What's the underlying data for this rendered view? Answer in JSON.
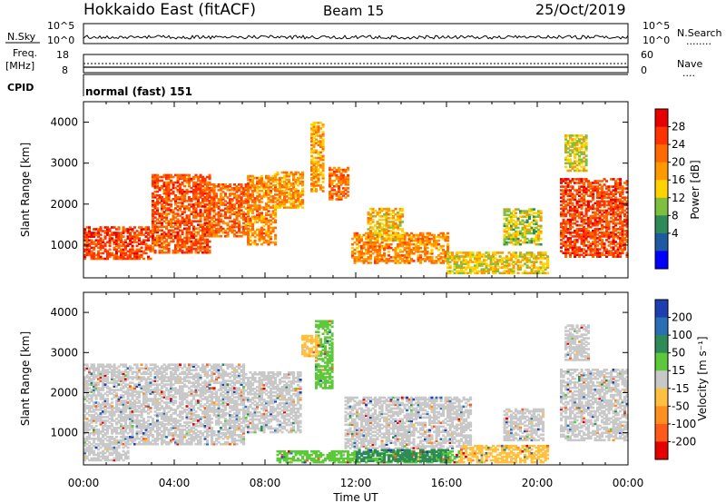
{
  "header": {
    "station": "Hokkaido East (fitACF)",
    "beam": "Beam 15",
    "date": "25/Oct/2019"
  },
  "strip": {
    "nsky_label": "N.Sky",
    "nsearch_label": "N.Search",
    "nsearch_line": "........",
    "count_ticks_left": [
      "10^5",
      "10^0"
    ],
    "count_ticks_right": [
      "10^5",
      "10^0"
    ],
    "freq_label_1": "Freq.",
    "freq_label_2": "[MHz]",
    "freq_ticks": [
      "18",
      "8"
    ],
    "nave_label": "Nave",
    "nave_line": "....",
    "nave_ticks": [
      "60",
      "0"
    ],
    "cpid_label": "CPID",
    "cpid_text": "normal (fast) 151"
  },
  "colorbars": {
    "power": {
      "label": "Power [dB]",
      "ticks": [
        "28",
        "24",
        "20",
        "16",
        "12",
        "8",
        "4"
      ],
      "colors": [
        "#e60000",
        "#ff3300",
        "#ff6a00",
        "#ff9900",
        "#ffd200",
        "#7fbf3f",
        "#2e8b57",
        "#1e5aa0",
        "#0000ff"
      ]
    },
    "velocity": {
      "label": "Velocity [m s⁻¹]",
      "ticks": [
        "200",
        "100",
        "50",
        "15",
        "-15",
        "-50",
        "-100",
        "-200"
      ],
      "colors": [
        "#1e3fb0",
        "#2a6fb5",
        "#2e8b57",
        "#5cc83a",
        "#c8c8c8",
        "#ffc040",
        "#ff9020",
        "#ff5a1a",
        "#e60000"
      ]
    }
  },
  "chart_data": [
    {
      "type": "heatmap",
      "quantity": "Power [dB]",
      "x": [
        "00:00",
        "04:00",
        "08:00",
        "12:00",
        "16:00",
        "20:00",
        "00:00"
      ],
      "xlabel": "",
      "ylabel": "Slant Range [km]",
      "yticks": [
        1000,
        2000,
        3000,
        4000
      ],
      "ylim": [
        200,
        4500
      ],
      "zticks": [
        4,
        8,
        12,
        16,
        20,
        24,
        28
      ],
      "zlim": [
        0,
        32
      ],
      "regions": [
        {
          "t0": 0.0,
          "t1": 3.0,
          "r0": 650,
          "r1": 1450,
          "db": 27
        },
        {
          "t0": 3.0,
          "t1": 5.5,
          "r0": 800,
          "r1": 2700,
          "db": 26
        },
        {
          "t0": 5.5,
          "t1": 7.2,
          "r0": 1200,
          "r1": 2500,
          "db": 25
        },
        {
          "t0": 7.2,
          "t1": 8.4,
          "r0": 1000,
          "r1": 2700,
          "db": 22
        },
        {
          "t0": 8.4,
          "t1": 9.6,
          "r0": 1900,
          "r1": 2800,
          "db": 21
        },
        {
          "t0": 10.0,
          "t1": 10.5,
          "r0": 2300,
          "r1": 4000,
          "db": 20
        },
        {
          "t0": 10.8,
          "t1": 11.6,
          "r0": 2100,
          "r1": 2900,
          "db": 24
        },
        {
          "t0": 11.8,
          "t1": 16.0,
          "r0": 550,
          "r1": 1300,
          "db": 22
        },
        {
          "t0": 12.5,
          "t1": 14.0,
          "r0": 1100,
          "r1": 1900,
          "db": 18
        },
        {
          "t0": 16.0,
          "t1": 20.5,
          "r0": 300,
          "r1": 800,
          "db": 16
        },
        {
          "t0": 18.5,
          "t1": 20.2,
          "r0": 1000,
          "r1": 1900,
          "db": 14
        },
        {
          "t0": 21.0,
          "t1": 24.0,
          "r0": 700,
          "r1": 2600,
          "db": 27
        },
        {
          "t0": 21.2,
          "t1": 22.2,
          "r0": 2800,
          "r1": 3700,
          "db": 15
        }
      ]
    },
    {
      "type": "heatmap",
      "quantity": "Velocity [m s-1]",
      "x": [
        "00:00",
        "04:00",
        "08:00",
        "12:00",
        "16:00",
        "20:00",
        "00:00"
      ],
      "xlabel": "Time UT",
      "ylabel": "Slant Range [km]",
      "yticks": [
        1000,
        2000,
        3000,
        4000
      ],
      "ylim": [
        200,
        4500
      ],
      "zticks": [
        -200,
        -100,
        -50,
        -15,
        15,
        50,
        100,
        200
      ],
      "regions": [
        {
          "t0": 0.0,
          "t1": 7.0,
          "r0": 700,
          "r1": 2700,
          "v": 0
        },
        {
          "t0": 0.0,
          "t1": 2.0,
          "r0": 300,
          "r1": 700,
          "v": 0
        },
        {
          "t0": 7.0,
          "t1": 9.5,
          "r0": 1000,
          "r1": 2500,
          "v": 0
        },
        {
          "t0": 10.2,
          "t1": 10.9,
          "r0": 2100,
          "r1": 3800,
          "v": 30
        },
        {
          "t0": 9.6,
          "t1": 10.3,
          "r0": 2900,
          "r1": 3400,
          "v": -30
        },
        {
          "t0": 11.5,
          "t1": 17.0,
          "r0": 600,
          "r1": 1900,
          "v": 0
        },
        {
          "t0": 8.5,
          "t1": 16.5,
          "r0": 250,
          "r1": 550,
          "v": 30
        },
        {
          "t0": 12.0,
          "t1": 16.0,
          "r0": 280,
          "r1": 560,
          "v": 60
        },
        {
          "t0": 16.5,
          "t1": 20.5,
          "r0": 250,
          "r1": 700,
          "v": -40
        },
        {
          "t0": 18.5,
          "t1": 20.3,
          "r0": 800,
          "r1": 1600,
          "v": 0
        },
        {
          "t0": 21.0,
          "t1": 24.0,
          "r0": 800,
          "r1": 2600,
          "v": 0
        },
        {
          "t0": 21.2,
          "t1": 22.3,
          "r0": 2800,
          "r1": 3700,
          "v": 0
        }
      ]
    }
  ]
}
